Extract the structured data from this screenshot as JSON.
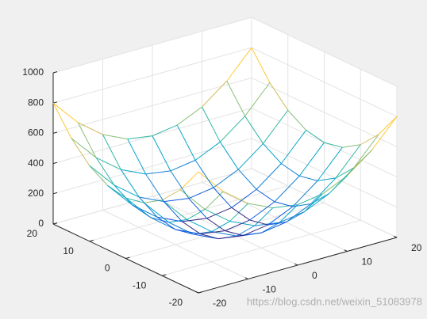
{
  "chart_data": {
    "type": "mesh",
    "x": [
      -20,
      -15,
      -10,
      -5,
      0,
      5,
      10,
      15,
      20
    ],
    "y": [
      -20,
      -15,
      -10,
      -5,
      0,
      5,
      10,
      15,
      20
    ],
    "z": [
      [
        800,
        625,
        500,
        425,
        400,
        425,
        500,
        625,
        800
      ],
      [
        625,
        450,
        325,
        250,
        225,
        250,
        325,
        450,
        625
      ],
      [
        500,
        325,
        200,
        125,
        100,
        125,
        200,
        325,
        500
      ],
      [
        425,
        250,
        125,
        50,
        25,
        50,
        125,
        250,
        425
      ],
      [
        400,
        225,
        100,
        25,
        0,
        25,
        100,
        225,
        400
      ],
      [
        425,
        250,
        125,
        50,
        25,
        50,
        125,
        250,
        425
      ],
      [
        500,
        325,
        200,
        125,
        100,
        125,
        200,
        325,
        500
      ],
      [
        625,
        450,
        325,
        250,
        225,
        250,
        325,
        450,
        625
      ],
      [
        800,
        625,
        500,
        425,
        400,
        425,
        500,
        625,
        800
      ]
    ],
    "xlim": [
      -20,
      20
    ],
    "ylim": [
      -20,
      20
    ],
    "zlim": [
      0,
      1000
    ],
    "xticks": [
      -20,
      -10,
      0,
      10,
      20
    ],
    "yticks": [
      -20,
      -10,
      0,
      10,
      20
    ],
    "zticks": [
      0,
      200,
      400,
      600,
      800,
      1000
    ],
    "grid": true,
    "colormap": [
      "#352a87",
      "#0f5cdd",
      "#1481d6",
      "#06a4ca",
      "#2eb7a4",
      "#87bf77",
      "#d1bb59",
      "#fec832",
      "#f9fb0e"
    ],
    "watermark": "https://blog.csdn.net/weixin_51083978"
  }
}
